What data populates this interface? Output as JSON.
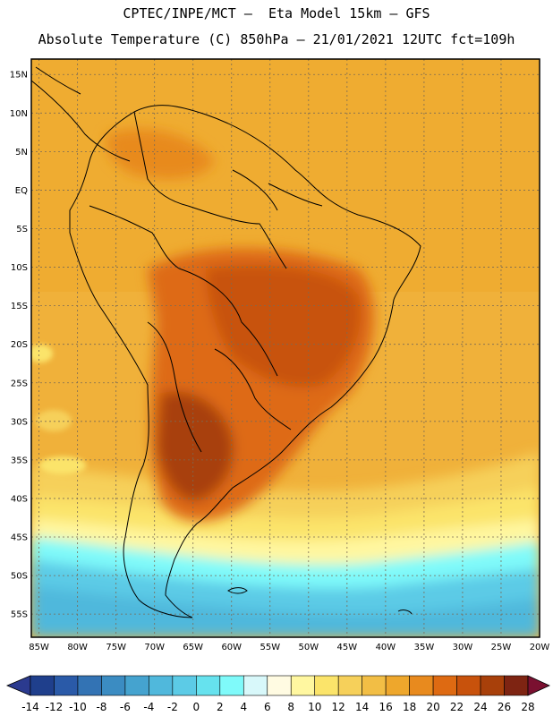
{
  "header": {
    "line1": "CPTEC/INPE/MCT –  Eta Model 15km – GFS",
    "line2": "Absolute Temperature (C) 850hPa – 21/01/2021 12UTC fct=109h"
  },
  "map": {
    "lat_labels": [
      "15N",
      "10N",
      "5N",
      "EQ",
      "5S",
      "10S",
      "15S",
      "20S",
      "25S",
      "30S",
      "35S",
      "40S",
      "45S",
      "50S",
      "55S"
    ],
    "lon_labels": [
      "85W",
      "80W",
      "75W",
      "70W",
      "65W",
      "60W",
      "55W",
      "50W",
      "45W",
      "40W",
      "35W",
      "30W",
      "25W",
      "20W"
    ],
    "grid": true
  },
  "colorbar": {
    "labels": [
      "-14",
      "-12",
      "-10",
      "-8",
      "-6",
      "-4",
      "-2",
      "0",
      "2",
      "4",
      "6",
      "8",
      "10",
      "12",
      "14",
      "16",
      "18",
      "20",
      "22",
      "24",
      "26",
      "28"
    ],
    "colors": [
      "#1f3f8c",
      "#2a5aa8",
      "#3373b4",
      "#3b8cc2",
      "#45a3cf",
      "#50b8dc",
      "#5ccbe6",
      "#66e2ee",
      "#7ffafa",
      "#d8f8fa",
      "#fffbe2",
      "#fff7a0",
      "#fbe46a",
      "#f6d05a",
      "#f2be45",
      "#eea72c",
      "#e88a1e",
      "#de6a12",
      "#c8520c",
      "#a8400a",
      "#7e2412"
    ],
    "min_color": "#2b3a8f",
    "max_color": "#7a1030"
  }
}
